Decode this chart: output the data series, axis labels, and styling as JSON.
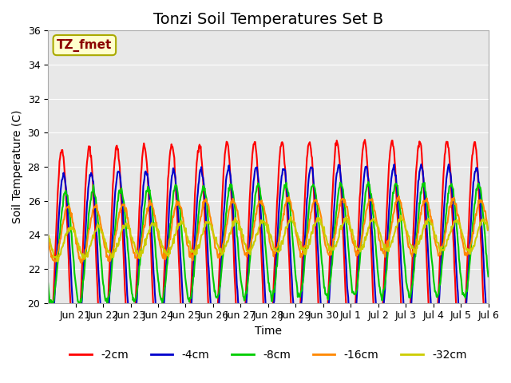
{
  "title": "Tonzi Soil Temperatures Set B",
  "xlabel": "Time",
  "ylabel": "Soil Temperature (C)",
  "ylim": [
    20,
    36
  ],
  "annotation_text": "TZ_fmet",
  "annotation_color": "#8B0000",
  "annotation_bg": "#FFFFCC",
  "annotation_border": "#AAAA00",
  "bg_color": "#E8E8E8",
  "series": [
    {
      "label": "-2cm",
      "color": "#FF0000",
      "lw": 1.5
    },
    {
      "label": "-4cm",
      "color": "#0000CC",
      "lw": 1.5
    },
    {
      "label": "-8cm",
      "color": "#00CC00",
      "lw": 1.5
    },
    {
      "label": "-16cm",
      "color": "#FF8800",
      "lw": 1.5
    },
    {
      "label": "-32cm",
      "color": "#CCCC00",
      "lw": 1.5
    }
  ],
  "xtick_labels": [
    "Jun 21",
    "Jun 22",
    "Jun 23",
    "Jun 24",
    "Jun 25",
    "Jun 26",
    "Jun 27",
    "Jun 28",
    "Jun 29",
    "Jun 30",
    "Jul 1",
    "Jul 2",
    "Jul 3",
    "Jul 4",
    "Jul 5",
    "Jul 6"
  ],
  "title_fontsize": 14,
  "axis_label_fontsize": 10,
  "tick_fontsize": 9,
  "legend_fontsize": 10
}
